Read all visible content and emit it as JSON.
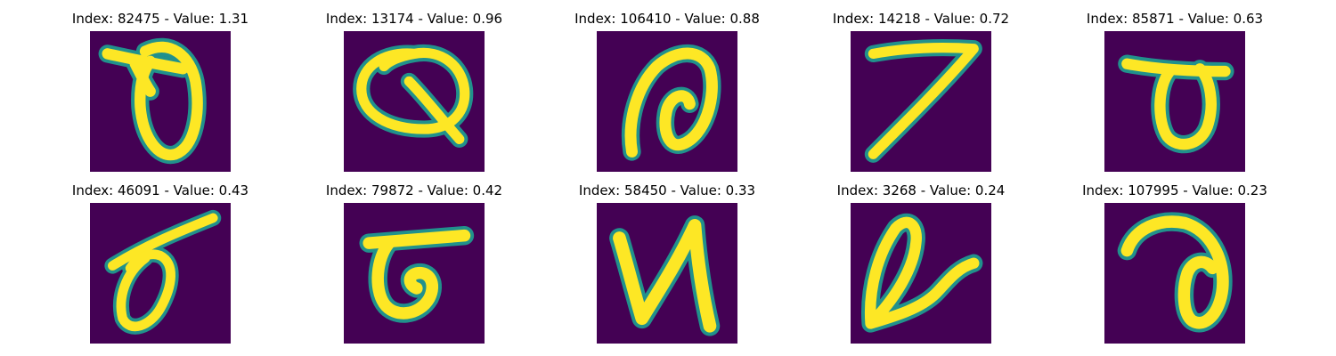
{
  "figure": {
    "colors": {
      "background": "#440154",
      "stroke_edge": "#21918c",
      "stroke_core": "#fde725"
    },
    "panels": [
      {
        "title": "Index: 82475 - Value: 1.31"
      },
      {
        "title": "Index: 13174 - Value: 0.96"
      },
      {
        "title": "Index: 106410 - Value: 0.88"
      },
      {
        "title": "Index: 14218 - Value: 0.72"
      },
      {
        "title": "Index: 85871 - Value: 0.63"
      },
      {
        "title": "Index: 46091 - Value: 0.43"
      },
      {
        "title": "Index: 79872 - Value: 0.42"
      },
      {
        "title": "Index: 58450 - Value: 0.33"
      },
      {
        "title": "Index: 3268 - Value: 0.24"
      },
      {
        "title": "Index: 107995 - Value: 0.23"
      }
    ]
  }
}
